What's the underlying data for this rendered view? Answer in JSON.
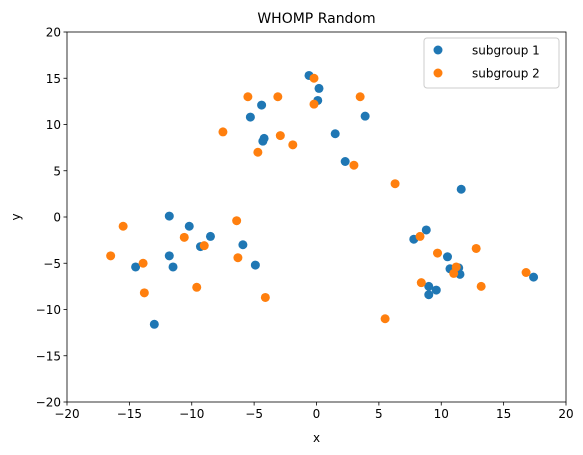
{
  "chart_data": {
    "type": "scatter",
    "title": "WHOMP Random",
    "xlabel": "x",
    "ylabel": "y",
    "xlim": [
      -20,
      20
    ],
    "ylim": [
      -20,
      20
    ],
    "xticks": [
      -20,
      -15,
      -10,
      -5,
      0,
      5,
      10,
      15,
      20
    ],
    "yticks": [
      -20,
      -15,
      -10,
      -5,
      0,
      5,
      10,
      15,
      20
    ],
    "grid": false,
    "legend_position": "top-right",
    "series": [
      {
        "name": "subgroup 1",
        "color": "#1f77b4",
        "points": [
          [
            -14.5,
            -5.4
          ],
          [
            -13.0,
            -11.6
          ],
          [
            -11.8,
            0.1
          ],
          [
            -11.8,
            -4.2
          ],
          [
            -11.5,
            -5.4
          ],
          [
            -10.2,
            -1.0
          ],
          [
            -9.3,
            -3.2
          ],
          [
            -8.5,
            -2.1
          ],
          [
            -5.9,
            -3.0
          ],
          [
            -4.9,
            -5.2
          ],
          [
            -5.3,
            10.8
          ],
          [
            -4.4,
            12.1
          ],
          [
            -4.3,
            8.2
          ],
          [
            -4.2,
            8.5
          ],
          [
            -0.6,
            15.3
          ],
          [
            0.2,
            13.9
          ],
          [
            0.1,
            12.6
          ],
          [
            1.5,
            9.0
          ],
          [
            2.3,
            6.0
          ],
          [
            3.9,
            10.9
          ],
          [
            7.8,
            -2.4
          ],
          [
            8.8,
            -1.4
          ],
          [
            9.0,
            -7.5
          ],
          [
            9.0,
            -8.4
          ],
          [
            9.6,
            -7.9
          ],
          [
            10.5,
            -4.3
          ],
          [
            10.7,
            -5.6
          ],
          [
            11.4,
            -5.5
          ],
          [
            11.5,
            -6.2
          ],
          [
            11.6,
            3.0
          ],
          [
            17.4,
            -6.5
          ]
        ]
      },
      {
        "name": "subgroup 2",
        "color": "#ff7f0e",
        "points": [
          [
            -16.5,
            -4.2
          ],
          [
            -15.5,
            -1.0
          ],
          [
            -13.9,
            -5.0
          ],
          [
            -13.8,
            -8.2
          ],
          [
            -10.6,
            -2.2
          ],
          [
            -9.6,
            -7.6
          ],
          [
            -9.0,
            -3.1
          ],
          [
            -7.5,
            9.2
          ],
          [
            -6.4,
            -0.4
          ],
          [
            -6.3,
            -4.4
          ],
          [
            -5.5,
            13.0
          ],
          [
            -4.7,
            7.0
          ],
          [
            -4.1,
            -8.7
          ],
          [
            -3.1,
            13.0
          ],
          [
            -2.9,
            8.8
          ],
          [
            -1.9,
            7.8
          ],
          [
            -0.2,
            12.2
          ],
          [
            -0.2,
            15.0
          ],
          [
            3.0,
            5.6
          ],
          [
            3.5,
            13.0
          ],
          [
            5.5,
            -11.0
          ],
          [
            6.3,
            3.6
          ],
          [
            8.3,
            -2.1
          ],
          [
            8.4,
            -7.1
          ],
          [
            9.7,
            -3.9
          ],
          [
            11.0,
            -6.1
          ],
          [
            11.2,
            -5.4
          ],
          [
            12.8,
            -3.4
          ],
          [
            13.2,
            -7.5
          ],
          [
            16.8,
            -6.0
          ]
        ]
      }
    ]
  }
}
